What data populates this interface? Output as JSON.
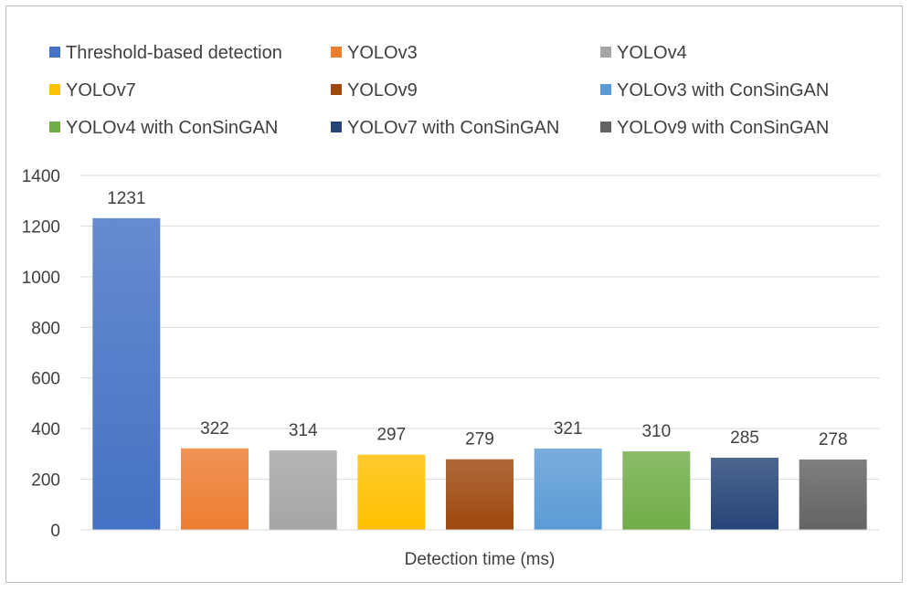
{
  "chart_data": {
    "type": "bar",
    "title": "",
    "xlabel": "Detection time (ms)",
    "ylabel": "",
    "ylim": [
      0,
      1400
    ],
    "yticks": [
      0,
      200,
      400,
      600,
      800,
      1000,
      1200,
      1400
    ],
    "grid": true,
    "legend_position": "top",
    "series": [
      {
        "name": "Threshold-based detection",
        "value": 1231,
        "color": "#4472C4"
      },
      {
        "name": "YOLOv3",
        "value": 322,
        "color": "#ED7D31"
      },
      {
        "name": "YOLOv4",
        "value": 314,
        "color": "#A5A5A5"
      },
      {
        "name": "YOLOv7",
        "value": 297,
        "color": "#FFC000"
      },
      {
        "name": "YOLOv9",
        "value": 279,
        "color": "#9E480E"
      },
      {
        "name": "YOLOv3 with ConSinGAN",
        "value": 321,
        "color": "#5B9BD5"
      },
      {
        "name": "YOLOv4 with ConSinGAN",
        "value": 310,
        "color": "#70AD47"
      },
      {
        "name": "YOLOv7 with ConSinGAN",
        "value": 285,
        "color": "#264478"
      },
      {
        "name": "YOLOv9 with ConSinGAN",
        "value": 278,
        "color": "#636363"
      }
    ]
  }
}
